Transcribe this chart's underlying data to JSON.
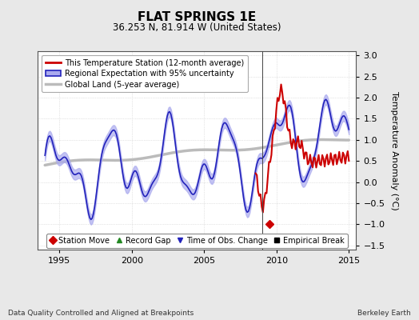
{
  "title": "FLAT SPRINGS 1E",
  "subtitle": "36.253 N, 81.914 W (United States)",
  "ylabel": "Temperature Anomaly (°C)",
  "footer_left": "Data Quality Controlled and Aligned at Breakpoints",
  "footer_right": "Berkeley Earth",
  "xlim": [
    1993.5,
    2015.5
  ],
  "ylim": [
    -1.6,
    3.1
  ],
  "yticks": [
    -1.5,
    -1.0,
    -0.5,
    0.0,
    0.5,
    1.0,
    1.5,
    2.0,
    2.5,
    3.0
  ],
  "xticks": [
    1995,
    2000,
    2005,
    2010,
    2015
  ],
  "bg_color": "#e8e8e8",
  "plot_bg_color": "#ffffff",
  "station_line_color": "#cc0000",
  "regional_line_color": "#2222bb",
  "regional_fill_color": "#aaaaee",
  "global_line_color": "#bbbbbb",
  "marker_station_move_color": "#cc0000",
  "marker_time_obs_color": "#2222bb",
  "station_move_year": 2009.5,
  "station_move_value": -1.0,
  "vertical_line_year": 2009.0
}
